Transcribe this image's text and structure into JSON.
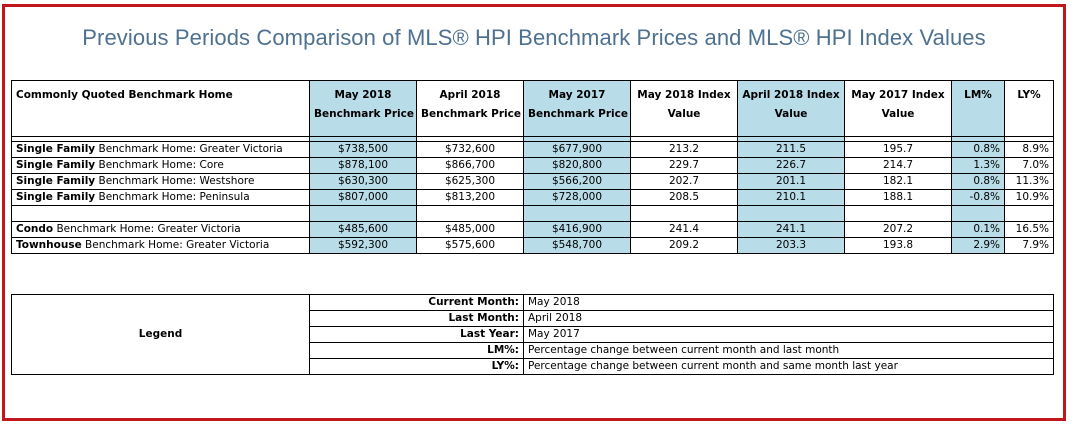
{
  "title": "Previous Periods Comparison of MLS® HPI Benchmark Prices and MLS® HPI Index Values",
  "header": {
    "home": "Commonly Quoted Benchmark Home",
    "may2018_price_1": "May 2018",
    "may2018_price_2": "Benchmark Price",
    "apr2018_price_1": "April 2018",
    "apr2018_price_2": "Benchmark Price",
    "may2017_price_1": "May 2017",
    "may2017_price_2": "Benchmark Price",
    "may2018_index_1": "May 2018 Index",
    "may2018_index_2": "Value",
    "apr2018_index_1": "April 2018 Index",
    "apr2018_index_2": "Value",
    "may2017_index_1": "May 2017 Index",
    "may2017_index_2": "Value",
    "lm": "LM%",
    "ly": "LY%"
  },
  "rows": [
    {
      "type_bold": "Single Family",
      "type_rest": " Benchmark Home: Greater Victoria",
      "p1": "$738,500",
      "p2": "$732,600",
      "p3": "$677,900",
      "i1": "213.2",
      "i2": "211.5",
      "i3": "195.7",
      "lm": "0.8%",
      "ly": "8.9%"
    },
    {
      "type_bold": "Single Family",
      "type_rest": " Benchmark Home: Core",
      "p1": "$878,100",
      "p2": "$866,700",
      "p3": "$820,800",
      "i1": "229.7",
      "i2": "226.7",
      "i3": "214.7",
      "lm": "1.3%",
      "ly": "7.0%"
    },
    {
      "type_bold": "Single Family",
      "type_rest": " Benchmark Home: Westshore",
      "p1": "$630,300",
      "p2": "$625,300",
      "p3": "$566,200",
      "i1": "202.7",
      "i2": "201.1",
      "i3": "182.1",
      "lm": "0.8%",
      "ly": "11.3%"
    },
    {
      "type_bold": "Single Family",
      "type_rest": " Benchmark Home: Peninsula",
      "p1": "$807,000",
      "p2": "$813,200",
      "p3": "$728,000",
      "i1": "208.5",
      "i2": "210.1",
      "i3": "188.1",
      "lm": "-0.8%",
      "ly": "10.9%"
    },
    {
      "type_bold": "Condo",
      "type_rest": " Benchmark Home: Greater Victoria",
      "p1": "$485,600",
      "p2": "$485,000",
      "p3": "$416,900",
      "i1": "241.4",
      "i2": "241.1",
      "i3": "207.2",
      "lm": "0.1%",
      "ly": "16.5%"
    },
    {
      "type_bold": "Townhouse",
      "type_rest": " Benchmark Home: Greater Victoria",
      "p1": "$592,300",
      "p2": "$575,600",
      "p3": "$548,700",
      "i1": "209.2",
      "i2": "203.3",
      "i3": "193.8",
      "lm": "2.9%",
      "ly": "7.9%"
    }
  ],
  "legend": {
    "title": "Legend",
    "items": [
      {
        "label": "Current Month:",
        "value": "May 2018"
      },
      {
        "label": "Last Month:",
        "value": "April 2018"
      },
      {
        "label": "Last Year:",
        "value": "May 2017"
      },
      {
        "label": "LM%:",
        "value": "Percentage change between current month and last month"
      },
      {
        "label": "LY%:",
        "value": "Percentage change between current month and same month last year"
      }
    ]
  },
  "colors": {
    "border": "#c0161c",
    "title": "#4f7190",
    "highlight": "#b8dce8"
  }
}
